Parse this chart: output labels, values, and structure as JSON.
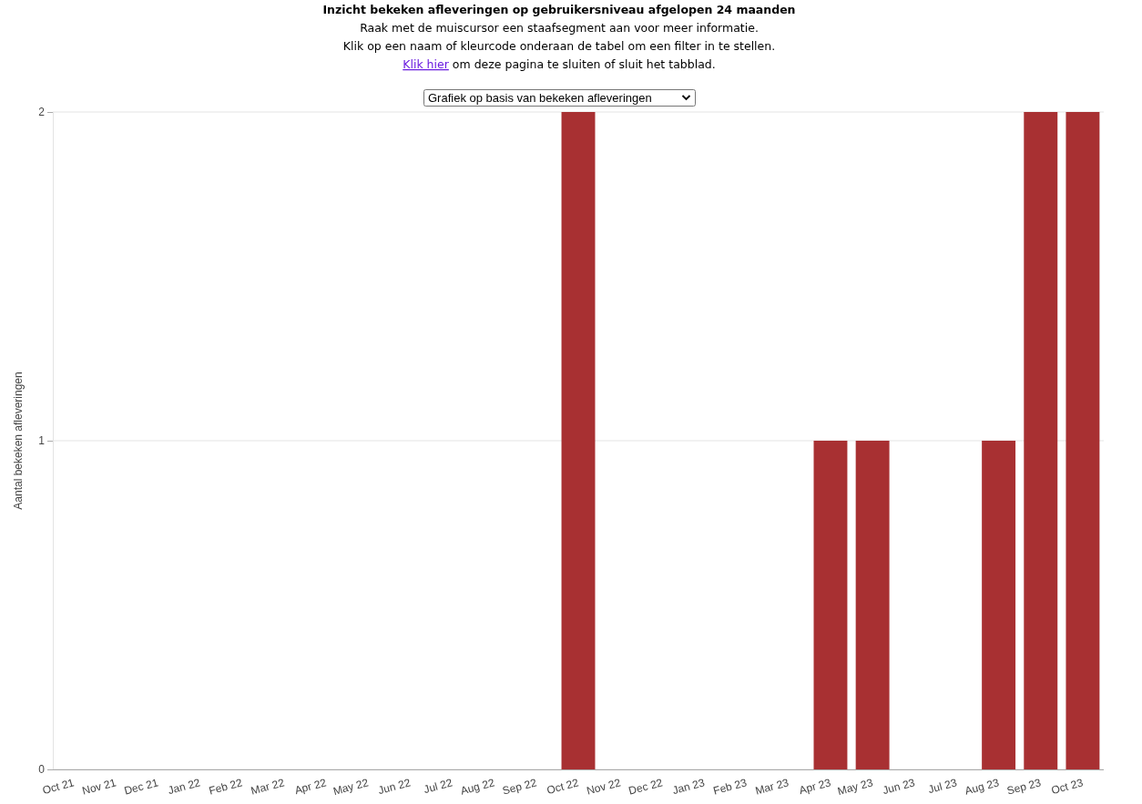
{
  "chart_data": {
    "type": "bar",
    "title": "Inzicht bekeken afleveringen op gebruikersniveau afgelopen 24 maanden",
    "subtitle": "Raak met de muiscursor een staafsegment aan voor meer informatie.\nKlik op een naam of kleurcode onderaan de tabel om een filter in te stellen.",
    "annotations": [
      "Klik hier",
      "om deze pagina te sluiten of sluit het tabblad.",
      "Grafiek op basis van bekeken afleveringen"
    ],
    "ylabel": "Aantal bekeken afleveringen",
    "categories": [
      "Oct 21",
      "Nov 21",
      "Dec 21",
      "Jan 22",
      "Feb 22",
      "Mar 22",
      "Apr 22",
      "May 22",
      "Jun 22",
      "Jul 22",
      "Aug 22",
      "Sep 22",
      "Oct 22",
      "Nov 22",
      "Dec 22",
      "Jan 23",
      "Feb 23",
      "Mar 23",
      "Apr 23",
      "May 23",
      "Jun 23",
      "Jul 23",
      "Aug 23",
      "Sep 23",
      "Oct 23"
    ],
    "values": [
      0,
      0,
      0,
      0,
      0,
      0,
      0,
      0,
      0,
      0,
      0,
      0,
      2,
      0,
      0,
      0,
      0,
      0,
      1,
      1,
      0,
      0,
      1,
      2,
      2
    ],
    "color": "#a83032",
    "ylim": [
      0,
      2
    ],
    "yticks": [
      0,
      1,
      2
    ],
    "grid": "y"
  }
}
